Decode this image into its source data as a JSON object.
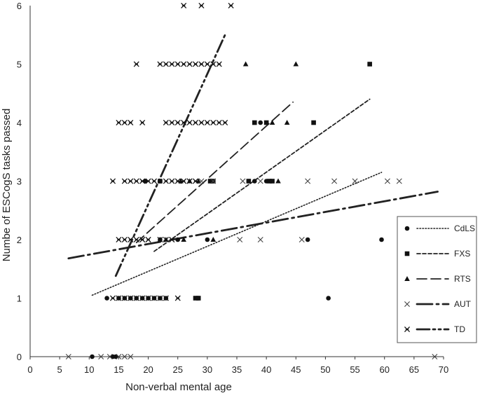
{
  "chart_data": {
    "type": "scatter",
    "xlabel": "Non-verbal mental age",
    "ylabel": "Numbe of ESCogS tasks passed",
    "xlim": [
      0,
      70
    ],
    "ylim": [
      0,
      6
    ],
    "x_ticks": [
      0,
      5,
      10,
      15,
      20,
      25,
      30,
      35,
      40,
      45,
      50,
      55,
      60,
      65,
      70
    ],
    "y_ticks": [
      0,
      1,
      2,
      3,
      4,
      5,
      6
    ],
    "x_tick_labels": [
      "0",
      "5",
      "10",
      "15",
      "20",
      "25",
      "30",
      "35",
      "40",
      "45",
      "50",
      "55",
      "60",
      "65",
      "70"
    ],
    "y_tick_labels": [
      "0",
      "1",
      "2",
      "3",
      "4",
      "5",
      "6"
    ],
    "grid": false,
    "legend_position": "right",
    "series": [
      {
        "name": "CdLS",
        "marker": "circle",
        "line": "dotted",
        "trend": [
          [
            10.5,
            1.05
          ],
          [
            59.5,
            3.15
          ]
        ],
        "points": [
          [
            10.5,
            0
          ],
          [
            14,
            0
          ],
          [
            14.5,
            0
          ],
          [
            13,
            1
          ],
          [
            15,
            1
          ],
          [
            16,
            1
          ],
          [
            17,
            1
          ],
          [
            18,
            1
          ],
          [
            19,
            1
          ],
          [
            20,
            1
          ],
          [
            21,
            1
          ],
          [
            22,
            1
          ],
          [
            23,
            1
          ],
          [
            28.5,
            1
          ],
          [
            50.5,
            1
          ],
          [
            22,
            2
          ],
          [
            25,
            2
          ],
          [
            30,
            2
          ],
          [
            47,
            2
          ],
          [
            59.5,
            2
          ],
          [
            19.5,
            3
          ],
          [
            22,
            3
          ],
          [
            38,
            3
          ],
          [
            40,
            3
          ],
          [
            39,
            4
          ]
        ]
      },
      {
        "name": "FXS",
        "marker": "square",
        "line": "short-dash",
        "trend": [
          [
            21,
            1.8
          ],
          [
            57.5,
            4.4
          ]
        ],
        "points": [
          [
            28,
            1
          ],
          [
            28.5,
            1
          ],
          [
            22,
            3
          ],
          [
            30.5,
            3
          ],
          [
            31,
            3
          ],
          [
            37,
            3
          ],
          [
            40.5,
            3
          ],
          [
            41,
            3
          ],
          [
            38,
            4
          ],
          [
            40,
            4
          ],
          [
            48,
            4
          ],
          [
            57.5,
            5
          ]
        ]
      },
      {
        "name": "RTS",
        "marker": "triangle",
        "line": "long-dash",
        "trend": [
          [
            18,
            1.95
          ],
          [
            44.5,
            4.35
          ]
        ],
        "points": [
          [
            22,
            2
          ],
          [
            23,
            2
          ],
          [
            26,
            2
          ],
          [
            31,
            2
          ],
          [
            25.5,
            3
          ],
          [
            27,
            3
          ],
          [
            28.5,
            3
          ],
          [
            42,
            3
          ],
          [
            41,
            4
          ],
          [
            43.5,
            4
          ],
          [
            36.5,
            5
          ],
          [
            45,
            5
          ]
        ]
      },
      {
        "name": "AUT",
        "marker": "x",
        "line": "dash-dot",
        "trend": [
          [
            6.5,
            1.68
          ],
          [
            69,
            2.82
          ]
        ],
        "points": [
          [
            6.5,
            0
          ],
          [
            12,
            0
          ],
          [
            13.5,
            0
          ],
          [
            15,
            0
          ],
          [
            16,
            0
          ],
          [
            17,
            0
          ],
          [
            68.5,
            0
          ],
          [
            19,
            2
          ],
          [
            20,
            2
          ],
          [
            24,
            2
          ],
          [
            35.5,
            2
          ],
          [
            39,
            2
          ],
          [
            46,
            2
          ],
          [
            27,
            3
          ],
          [
            29,
            3
          ],
          [
            31,
            3
          ],
          [
            36,
            3
          ],
          [
            39,
            3
          ],
          [
            47,
            3
          ],
          [
            51.5,
            3
          ],
          [
            55,
            3
          ],
          [
            60.5,
            3
          ],
          [
            62.5,
            3
          ]
        ]
      },
      {
        "name": "TD",
        "marker": "asterisk",
        "line": "dash-dot-dot",
        "trend": [
          [
            14.5,
            1.38
          ],
          [
            33,
            5.5
          ]
        ],
        "points": [
          [
            14,
            1
          ],
          [
            15,
            1
          ],
          [
            16,
            1
          ],
          [
            17,
            1
          ],
          [
            18,
            1
          ],
          [
            19,
            1
          ],
          [
            20,
            1
          ],
          [
            21,
            1
          ],
          [
            22,
            1
          ],
          [
            23,
            1
          ],
          [
            25,
            1
          ],
          [
            15,
            2
          ],
          [
            16,
            2
          ],
          [
            17,
            2
          ],
          [
            18,
            2
          ],
          [
            19,
            2
          ],
          [
            20,
            2
          ],
          [
            22,
            2
          ],
          [
            23,
            2
          ],
          [
            24,
            2
          ],
          [
            14,
            3
          ],
          [
            16,
            3
          ],
          [
            17,
            3
          ],
          [
            18,
            3
          ],
          [
            19,
            3
          ],
          [
            20,
            3
          ],
          [
            21,
            3
          ],
          [
            23,
            3
          ],
          [
            24,
            3
          ],
          [
            25,
            3
          ],
          [
            26,
            3
          ],
          [
            27,
            3
          ],
          [
            28,
            3
          ],
          [
            15,
            4
          ],
          [
            16,
            4
          ],
          [
            17,
            4
          ],
          [
            19,
            4
          ],
          [
            23,
            4
          ],
          [
            24,
            4
          ],
          [
            25,
            4
          ],
          [
            26,
            4
          ],
          [
            27,
            4
          ],
          [
            28,
            4
          ],
          [
            29,
            4
          ],
          [
            30,
            4
          ],
          [
            31,
            4
          ],
          [
            32,
            4
          ],
          [
            33,
            4
          ],
          [
            18,
            5
          ],
          [
            22,
            5
          ],
          [
            23,
            5
          ],
          [
            24,
            5
          ],
          [
            25,
            5
          ],
          [
            26,
            5
          ],
          [
            27,
            5
          ],
          [
            28,
            5
          ],
          [
            29,
            5
          ],
          [
            30,
            5
          ],
          [
            31,
            5
          ],
          [
            32,
            5
          ],
          [
            26,
            6
          ],
          [
            29,
            6
          ],
          [
            34,
            6
          ]
        ]
      }
    ]
  }
}
